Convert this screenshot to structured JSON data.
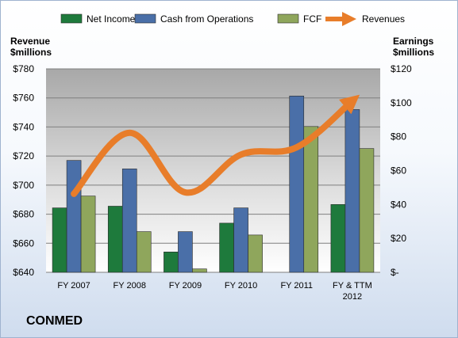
{
  "company_label": "CONMED",
  "chart_data": {
    "type": "bar",
    "categories": [
      "FY 2007",
      "FY 2008",
      "FY 2009",
      "FY 2010",
      "FY 2011",
      "FY & TTM 2012"
    ],
    "bar_series_axis": "right",
    "series": [
      {
        "name": "Net Income",
        "axis": "right",
        "type": "bar",
        "color": "#1e7a3c",
        "values": [
          38,
          39,
          12,
          29,
          null,
          40
        ]
      },
      {
        "name": "Cash from Operations",
        "axis": "right",
        "type": "bar",
        "color": "#4a6fa8",
        "values": [
          66,
          61,
          24,
          38,
          104,
          96
        ]
      },
      {
        "name": "FCF",
        "axis": "right",
        "type": "bar",
        "color": "#8fa65c",
        "values": [
          45,
          24,
          2,
          22,
          86,
          73
        ]
      },
      {
        "name": "Revenues",
        "axis": "left",
        "type": "line",
        "color": "#e87d2a",
        "values": [
          694,
          736,
          695,
          721,
          726,
          758
        ]
      }
    ],
    "y_left": {
      "label_line1": "Revenue",
      "label_line2": "$millions",
      "min": 640,
      "max": 780,
      "ticks": [
        640,
        660,
        680,
        700,
        720,
        740,
        760,
        780
      ],
      "tick_labels": [
        "$640",
        "$660",
        "$680",
        "$700",
        "$720",
        "$740",
        "$760",
        "$780"
      ]
    },
    "y_right": {
      "label_line1": "Earnings",
      "label_line2": "$millions",
      "min": 0,
      "max": 120,
      "ticks": [
        0,
        20,
        40,
        60,
        80,
        100,
        120
      ],
      "tick_labels": [
        "$-",
        "$20",
        "$40",
        "$60",
        "$80",
        "$100",
        "$120"
      ]
    },
    "legend_position": "top",
    "grid": true
  }
}
